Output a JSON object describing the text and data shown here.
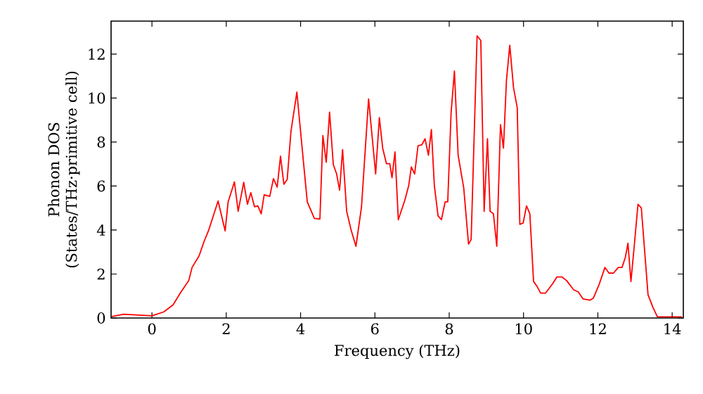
{
  "chart_data": {
    "type": "line",
    "xlabel": "Frequency (THz)",
    "ylabel": "Phonon DOS (States/THz·primitive cell)",
    "xlim": [
      -1.1,
      14.3
    ],
    "ylim": [
      0,
      13.5
    ],
    "xticks": [
      0,
      2,
      4,
      6,
      8,
      10,
      12,
      14
    ],
    "yticks": [
      0,
      2,
      4,
      6,
      8,
      10,
      12
    ],
    "series": [
      {
        "color": "#ff0000",
        "x": [
          -1.08,
          -0.76,
          0,
          0.32,
          0.57,
          0.76,
          0.99,
          1.08,
          1.27,
          1.4,
          1.52,
          1.78,
          1.97,
          2.05,
          2.22,
          2.32,
          2.47,
          2.57,
          2.66,
          2.76,
          2.85,
          2.94,
          3.02,
          3.17,
          3.27,
          3.37,
          3.46,
          3.55,
          3.64,
          3.74,
          3.9,
          4.06,
          4.18,
          4.37,
          4.52,
          4.6,
          4.69,
          4.78,
          4.88,
          4.97,
          5.05,
          5.13,
          5.24,
          5.36,
          5.49,
          5.64,
          5.83,
          6.02,
          6.12,
          6.21,
          6.31,
          6.4,
          6.46,
          6.54,
          6.63,
          6.81,
          6.91,
          6.98,
          7.07,
          7.16,
          7.26,
          7.35,
          7.44,
          7.52,
          7.6,
          7.7,
          7.79,
          7.89,
          7.96,
          8.05,
          8.14,
          8.24,
          8.39,
          8.52,
          8.59,
          8.75,
          8.85,
          8.94,
          9.03,
          9.1,
          9.19,
          9.28,
          9.38,
          9.46,
          9.54,
          9.63,
          9.73,
          9.83,
          9.9,
          9.99,
          10.08,
          10.17,
          10.27,
          10.36,
          10.46,
          10.59,
          10.78,
          10.9,
          11.03,
          11.16,
          11.35,
          11.47,
          11.6,
          11.79,
          11.88,
          12.04,
          12.19,
          12.3,
          12.42,
          12.55,
          12.65,
          12.74,
          12.81,
          12.89,
          12.99,
          13.08,
          13.17,
          13.35,
          13.48,
          13.6,
          14.26
        ],
        "values": [
          0.07,
          0.17,
          0.1,
          0.28,
          0.6,
          1.13,
          1.7,
          2.3,
          2.83,
          3.47,
          3.96,
          5.32,
          3.96,
          5.28,
          6.19,
          4.85,
          6.17,
          5.17,
          5.7,
          5.06,
          5.1,
          4.74,
          5.6,
          5.53,
          6.34,
          5.95,
          7.36,
          6.08,
          6.3,
          8.47,
          10.27,
          7.4,
          5.28,
          4.53,
          4.5,
          8.3,
          7.08,
          9.36,
          6.98,
          6.55,
          5.81,
          7.66,
          4.85,
          4.0,
          3.26,
          5.06,
          9.96,
          6.55,
          9.11,
          7.72,
          7.02,
          7.02,
          6.38,
          7.55,
          4.47,
          5.38,
          6.02,
          6.87,
          6.55,
          7.83,
          7.87,
          8.15,
          7.4,
          8.57,
          6.02,
          4.64,
          4.47,
          5.28,
          5.28,
          9.32,
          11.23,
          7.4,
          5.92,
          3.36,
          3.57,
          12.83,
          12.62,
          4.85,
          8.15,
          4.85,
          4.74,
          3.26,
          8.79,
          7.72,
          10.8,
          12.4,
          10.48,
          9.57,
          4.26,
          4.32,
          5.1,
          4.74,
          1.66,
          1.45,
          1.13,
          1.13,
          1.55,
          1.87,
          1.87,
          1.7,
          1.28,
          1.19,
          0.87,
          0.81,
          0.91,
          1.55,
          2.3,
          2.04,
          2.04,
          2.3,
          2.3,
          2.76,
          3.4,
          1.66,
          3.47,
          5.17,
          5.0,
          1.06,
          0.49,
          0.06,
          0.05
        ]
      }
    ]
  }
}
